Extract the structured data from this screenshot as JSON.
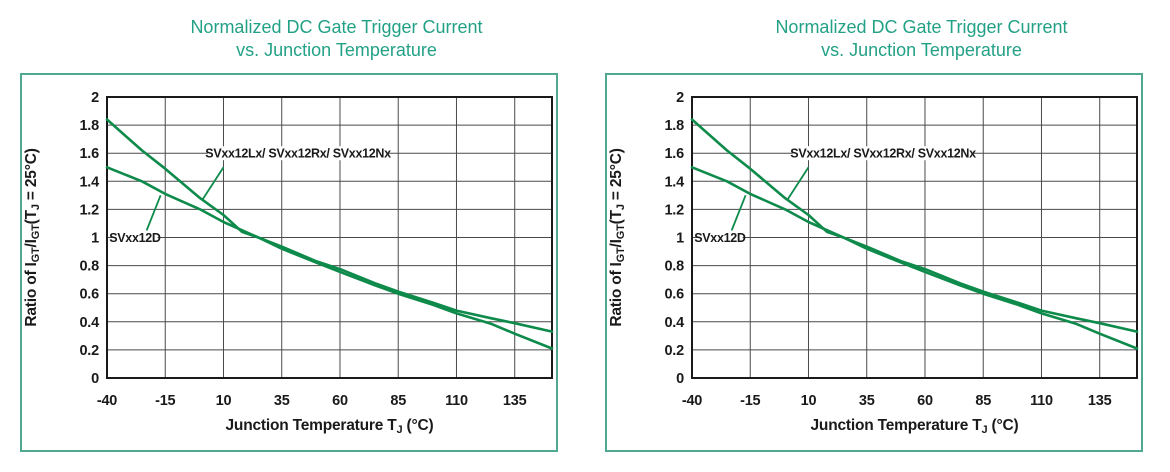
{
  "colors": {
    "title_green": "#23a186",
    "box_border": "#4fa890",
    "curve_green": "#0e8b4b",
    "grid_line": "#4a4a4a",
    "plot_border": "#1a1a1a",
    "text_dark": "#1a1a1a",
    "background": "#ffffff"
  },
  "panels": [
    {
      "title_line1": "Normalized DC Gate Trigger Current",
      "title_line2": "vs. Junction Temperature"
    },
    {
      "title_line1": "Normalized DC Gate Trigger Current",
      "title_line2": "vs. Junction Temperature"
    }
  ],
  "chart_data": [
    {
      "type": "line",
      "title": "Normalized DC Gate Trigger Current vs. Junction Temperature",
      "xlabel": "Junction Temperature TJ (°C)",
      "xlabel_parts": [
        {
          "t": "Junction Temperature T"
        },
        {
          "t": "J",
          "sub": true
        },
        {
          "t": " (°C)"
        }
      ],
      "ylabel": "Ratio of IGT/IGT(TJ = 25°C)",
      "ylabel_parts": [
        {
          "t": "Ratio of I"
        },
        {
          "t": "GT",
          "sub": true
        },
        {
          "t": "/I"
        },
        {
          "t": "GT",
          "sub": true
        },
        {
          "t": "(T"
        },
        {
          "t": "J",
          "sub": true
        },
        {
          "t": " = 25°C)"
        }
      ],
      "xlim": [
        -40,
        151
      ],
      "ylim": [
        0,
        2
      ],
      "grid": true,
      "legend_position": "inline-annotations",
      "x_ticks": [
        {
          "v": -40,
          "label": "-40"
        },
        {
          "v": -15,
          "label": "-15"
        },
        {
          "v": 10,
          "label": "10"
        },
        {
          "v": 35,
          "label": "35"
        },
        {
          "v": 60,
          "label": "60"
        },
        {
          "v": 85,
          "label": "85"
        },
        {
          "v": 110,
          "label": "110"
        },
        {
          "v": 135,
          "label": "135"
        }
      ],
      "y_ticks": [
        {
          "v": 2,
          "label": "2"
        },
        {
          "v": 1.8,
          "label": "1.8"
        },
        {
          "v": 1.6,
          "label": "1.6"
        },
        {
          "v": 1.4,
          "label": "1.4"
        },
        {
          "v": 1.2,
          "label": "1.2"
        },
        {
          "v": 1,
          "label": "1"
        },
        {
          "v": 0.8,
          "label": "0.8"
        },
        {
          "v": 0.6,
          "label": "0.6"
        },
        {
          "v": 0.4,
          "label": "0.4"
        },
        {
          "v": 0.2,
          "label": "0.2"
        },
        {
          "v": 0,
          "label": "0"
        }
      ],
      "series": [
        {
          "name": "SVxx12Lx/ SVxx12Rx/ SVxx12Nx",
          "points": [
            [
              -40,
              1.84
            ],
            [
              -25,
              1.62
            ],
            [
              -15,
              1.49
            ],
            [
              0,
              1.28
            ],
            [
              10,
              1.16
            ],
            [
              18,
              1.04
            ],
            [
              25,
              1.0
            ],
            [
              35,
              0.92
            ],
            [
              50,
              0.82
            ],
            [
              60,
              0.755
            ],
            [
              75,
              0.66
            ],
            [
              85,
              0.6
            ],
            [
              100,
              0.52
            ],
            [
              110,
              0.46
            ],
            [
              125,
              0.385
            ],
            [
              135,
              0.315
            ],
            [
              151,
              0.21
            ]
          ]
        },
        {
          "name": "SVxx12D",
          "points": [
            [
              -40,
              1.5
            ],
            [
              -25,
              1.4
            ],
            [
              -15,
              1.31
            ],
            [
              0,
              1.2
            ],
            [
              10,
              1.11
            ],
            [
              25,
              1.0
            ],
            [
              35,
              0.935
            ],
            [
              50,
              0.83
            ],
            [
              60,
              0.775
            ],
            [
              75,
              0.675
            ],
            [
              85,
              0.615
            ],
            [
              100,
              0.535
            ],
            [
              110,
              0.48
            ],
            [
              125,
              0.425
            ],
            [
              135,
              0.39
            ],
            [
              151,
              0.33
            ]
          ]
        }
      ],
      "annotations": [
        {
          "text": "SVxx12Lx/ SVxx12Rx/ SVxx12Nx",
          "x": 42,
          "y": 1.6,
          "leader": [
            [
              10,
              1.5
            ],
            [
              1,
              1.27
            ]
          ]
        },
        {
          "text": "SVxx12D",
          "x": -28,
          "y": 1.0,
          "leader": [
            [
              -23,
              1.05
            ],
            [
              -17,
              1.3
            ]
          ]
        }
      ]
    },
    {
      "type": "line",
      "title": "Normalized DC Gate Trigger Current vs. Junction Temperature",
      "xlabel": "Junction Temperature TJ (°C)",
      "xlabel_parts": [
        {
          "t": "Junction Temperature T"
        },
        {
          "t": "J",
          "sub": true
        },
        {
          "t": " (°C)"
        }
      ],
      "ylabel": "Ratio of IGT/IGT(TJ = 25°C)",
      "ylabel_parts": [
        {
          "t": "Ratio of I"
        },
        {
          "t": "GT",
          "sub": true
        },
        {
          "t": "/I"
        },
        {
          "t": "GT",
          "sub": true
        },
        {
          "t": "(T"
        },
        {
          "t": "J",
          "sub": true
        },
        {
          "t": " = 25°C)"
        }
      ],
      "xlim": [
        -40,
        151
      ],
      "ylim": [
        0,
        2
      ],
      "grid": true,
      "legend_position": "inline-annotations",
      "x_ticks": [
        {
          "v": -40,
          "label": "-40"
        },
        {
          "v": -15,
          "label": "-15"
        },
        {
          "v": 10,
          "label": "10"
        },
        {
          "v": 35,
          "label": "35"
        },
        {
          "v": 60,
          "label": "60"
        },
        {
          "v": 85,
          "label": "85"
        },
        {
          "v": 110,
          "label": "110"
        },
        {
          "v": 135,
          "label": "135"
        }
      ],
      "y_ticks": [
        {
          "v": 2,
          "label": "2"
        },
        {
          "v": 1.8,
          "label": "1.8"
        },
        {
          "v": 1.6,
          "label": "1.6"
        },
        {
          "v": 1.4,
          "label": "1.4"
        },
        {
          "v": 1.2,
          "label": "1.2"
        },
        {
          "v": 1,
          "label": "1"
        },
        {
          "v": 0.8,
          "label": "0.8"
        },
        {
          "v": 0.6,
          "label": "0.6"
        },
        {
          "v": 0.4,
          "label": "0.4"
        },
        {
          "v": 0.2,
          "label": "0.2"
        },
        {
          "v": 0,
          "label": "0"
        }
      ],
      "series": [
        {
          "name": "SVxx12Lx/ SVxx12Rx/ SVxx12Nx",
          "points": [
            [
              -40,
              1.84
            ],
            [
              -25,
              1.62
            ],
            [
              -15,
              1.49
            ],
            [
              0,
              1.28
            ],
            [
              10,
              1.16
            ],
            [
              18,
              1.04
            ],
            [
              25,
              1.0
            ],
            [
              35,
              0.92
            ],
            [
              50,
              0.82
            ],
            [
              60,
              0.755
            ],
            [
              75,
              0.66
            ],
            [
              85,
              0.6
            ],
            [
              100,
              0.52
            ],
            [
              110,
              0.46
            ],
            [
              125,
              0.385
            ],
            [
              135,
              0.315
            ],
            [
              151,
              0.21
            ]
          ]
        },
        {
          "name": "SVxx12D",
          "points": [
            [
              -40,
              1.5
            ],
            [
              -25,
              1.4
            ],
            [
              -15,
              1.31
            ],
            [
              0,
              1.2
            ],
            [
              10,
              1.11
            ],
            [
              25,
              1.0
            ],
            [
              35,
              0.935
            ],
            [
              50,
              0.83
            ],
            [
              60,
              0.775
            ],
            [
              75,
              0.675
            ],
            [
              85,
              0.615
            ],
            [
              100,
              0.535
            ],
            [
              110,
              0.48
            ],
            [
              125,
              0.425
            ],
            [
              135,
              0.39
            ],
            [
              151,
              0.33
            ]
          ]
        }
      ],
      "annotations": [
        {
          "text": "SVxx12Lx/ SVxx12Rx/ SVxx12Nx",
          "x": 42,
          "y": 1.6,
          "leader": [
            [
              10,
              1.5
            ],
            [
              1,
              1.27
            ]
          ]
        },
        {
          "text": "SVxx12D",
          "x": -28,
          "y": 1.0,
          "leader": [
            [
              -23,
              1.05
            ],
            [
              -17,
              1.3
            ]
          ]
        }
      ]
    }
  ]
}
